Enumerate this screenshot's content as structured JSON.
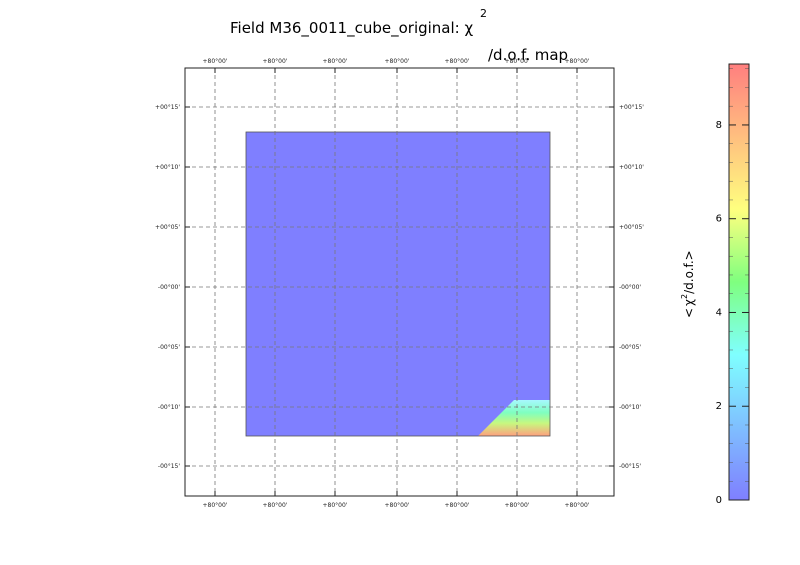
{
  "title": {
    "prefix": "Field M36_0011_cube_original: ",
    "symbol": "χ",
    "sup": "2",
    "suffix": "/d.o.f. map"
  },
  "chart_data": {
    "type": "heatmap",
    "x_ticks": [
      "+80°00'",
      "+80°00'",
      "+80°00'",
      "+80°00'",
      "+80°00'",
      "+80°00'",
      "+80°00'"
    ],
    "y_ticks": [
      "+00°15'",
      "+00°10'",
      "+00°05'",
      "-00°00'",
      "-00°05'",
      "-00°10'",
      "-00°15'"
    ],
    "right_y_ticks": [
      "+00°15'",
      "+00°10'",
      "+00°05'",
      "-00°00'",
      "-00°05'",
      "-00°10'",
      "-00°15'"
    ],
    "grid": true,
    "map_value": 0.8,
    "vmin": 0,
    "vmax": 9.3,
    "colorbar": {
      "ticks": [
        0,
        2,
        4,
        6,
        8
      ],
      "title_symbol": "χ",
      "title_sup": "2",
      "title_text": "/d.o.f.",
      "colors": [
        "#7f7fff",
        "#7fbfff",
        "#7fffff",
        "#7fff7f",
        "#ffff7f",
        "#ffbf7f",
        "#ff7f7f"
      ]
    }
  }
}
